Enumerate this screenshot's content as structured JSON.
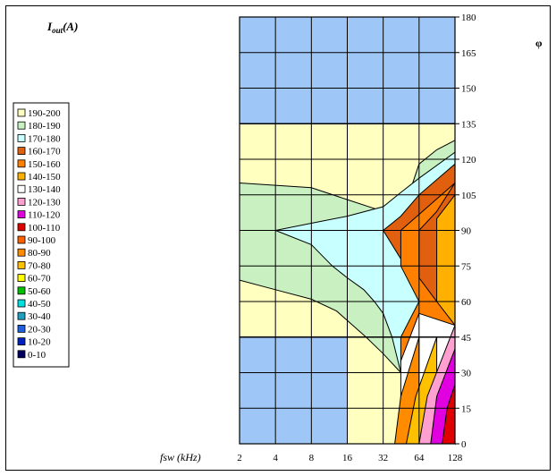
{
  "chart_data": {
    "type": "heatmap",
    "title": "I out (A)",
    "title_main": "I",
    "title_sub": "out",
    "title_unit": "(A)",
    "xlabel": "fsw (kHz)",
    "ylabel_right": "φ",
    "x_ticks": [
      "2",
      "4",
      "8",
      "16",
      "32",
      "64",
      "128"
    ],
    "y_ticks": [
      "0",
      "15",
      "30",
      "45",
      "60",
      "75",
      "90",
      "105",
      "120",
      "135",
      "150",
      "165",
      "180"
    ],
    "x_scale": "log2",
    "xlim": [
      2,
      128
    ],
    "ylim": [
      0,
      180
    ],
    "grid": true,
    "legend_position": "left",
    "legend": [
      {
        "label": "190-200",
        "color": "#ffffc0"
      },
      {
        "label": "180-190",
        "color": "#c8f0c0"
      },
      {
        "label": "170-180",
        "color": "#c8ffff"
      },
      {
        "label": "160-170",
        "color": "#e06010"
      },
      {
        "label": "150-160",
        "color": "#ff8000"
      },
      {
        "label": "140-150",
        "color": "#ffb000"
      },
      {
        "label": "130-140",
        "color": "#ffffff"
      },
      {
        "label": "120-130",
        "color": "#ffa0d0"
      },
      {
        "label": "110-120",
        "color": "#e000e0"
      },
      {
        "label": "100-110",
        "color": "#e00000"
      },
      {
        "label": "90-100",
        "color": "#ff6000"
      },
      {
        "label": "80-90",
        "color": "#ff8c00"
      },
      {
        "label": "70-80",
        "color": "#ffc000"
      },
      {
        "label": "60-70",
        "color": "#ffff00"
      },
      {
        "label": "50-60",
        "color": "#00c000"
      },
      {
        "label": "40-50",
        "color": "#00e0e0"
      },
      {
        "label": "30-40",
        "color": "#20a0c0"
      },
      {
        "label": "20-30",
        "color": "#2060e0"
      },
      {
        "label": "10-20",
        "color": "#0020c0"
      },
      {
        "label": "0-10",
        "color": "#000060"
      }
    ],
    "undefined_region_color": "#9ec7f7",
    "undefined_regions": [
      {
        "x_range": [
          2,
          128
        ],
        "y_range": [
          135,
          180
        ]
      },
      {
        "x_range": [
          2,
          16
        ],
        "y_range": [
          0,
          45
        ]
      }
    ],
    "contour_boundaries": [
      {
        "upper_band": "190-200",
        "lower_band": "180-190",
        "points": [
          [
            2,
            110
          ],
          [
            8,
            108
          ],
          [
            16,
            103
          ],
          [
            32,
            98
          ],
          [
            45,
            95
          ],
          [
            64,
            118
          ],
          [
            90,
            124
          ],
          [
            128,
            128
          ]
        ]
      },
      {
        "upper_band": "180-190",
        "lower_band": "190-200",
        "points": [
          [
            2,
            69
          ],
          [
            4,
            65
          ],
          [
            8,
            61
          ],
          [
            13,
            56
          ],
          [
            23,
            45
          ],
          [
            32,
            38
          ],
          [
            45,
            30
          ],
          [
            64,
            20
          ],
          [
            90,
            10
          ],
          [
            128,
            0
          ]
        ]
      },
      {
        "upper_band": "180-190",
        "lower_band": "170-180",
        "points": [
          [
            128,
            123
          ],
          [
            64,
            112
          ],
          [
            45,
            106
          ],
          [
            32,
            100
          ],
          [
            16,
            96
          ],
          [
            8,
            93
          ],
          [
            4,
            90
          ],
          [
            8,
            84
          ],
          [
            12,
            75
          ],
          [
            16,
            70
          ],
          [
            22,
            65
          ],
          [
            27,
            60
          ],
          [
            32,
            55
          ],
          [
            38,
            45
          ],
          [
            45,
            30
          ],
          [
            64,
            15
          ],
          [
            90,
            5
          ],
          [
            128,
            0
          ]
        ]
      },
      {
        "upper_band": "170-180",
        "lower_band": "160-170",
        "points": [
          [
            128,
            118
          ],
          [
            64,
            105
          ],
          [
            45,
            96
          ],
          [
            32,
            90
          ],
          [
            45,
            78
          ],
          [
            64,
            65
          ],
          [
            90,
            55
          ],
          [
            128,
            45
          ],
          [
            128,
            0
          ]
        ]
      },
      {
        "upper_band": "150-160",
        "lower_band": "140-150",
        "points": [
          [
            128,
            110
          ],
          [
            90,
            98
          ],
          [
            64,
            90
          ],
          [
            64,
            70
          ],
          [
            90,
            60
          ],
          [
            128,
            55
          ]
        ]
      }
    ]
  }
}
